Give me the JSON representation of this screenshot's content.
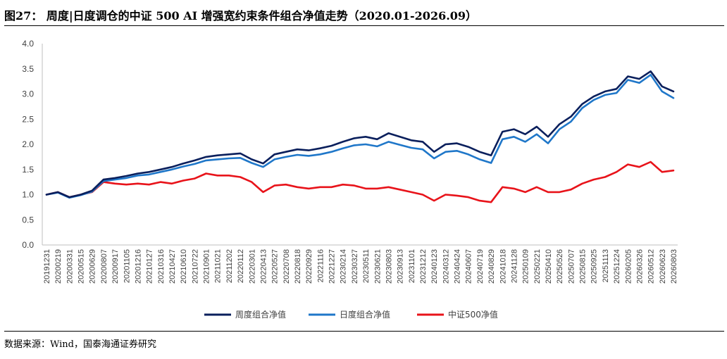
{
  "figure": {
    "title": "图27：  周度|日度调仓的中证 500 AI 增强宽约束条件组合净值走势（2020.01-2026.09）",
    "source": "数据来源：Wind，国泰海通证券研究"
  },
  "chart_data": {
    "type": "line",
    "title": "",
    "xlabel": "",
    "ylabel": "",
    "ylim": [
      0,
      4.0
    ],
    "yticks": [
      "0.0",
      "0.5",
      "1.0",
      "1.5",
      "2.0",
      "2.5",
      "3.0",
      "3.5",
      "4.0"
    ],
    "grid": false,
    "legend_position": "bottom",
    "x_tick_labels": [
      "20191231",
      "20200219",
      "20200331",
      "20200515",
      "20200629",
      "20200807",
      "20200917",
      "20201105",
      "20201216",
      "20210127",
      "20210316",
      "20210427",
      "20210610",
      "20210722",
      "20210901",
      "20211021",
      "20211202",
      "20220112",
      "20220301",
      "20220413",
      "20220527",
      "20220708",
      "20220818",
      "20220929",
      "20221116",
      "20221227",
      "20230214",
      "20230327",
      "20230511",
      "20230621",
      "20230803",
      "20230913",
      "20231101",
      "20231212",
      "20240123",
      "20240312",
      "20240424",
      "20240607",
      "20240719",
      "20240829",
      "20241018",
      "20241128",
      "20250109",
      "20250221",
      "20250410",
      "20250526",
      "20250707",
      "20250815",
      "20250925",
      "20251113",
      "20251224",
      "20260205",
      "20260326",
      "20260512",
      "20260623",
      "20260803"
    ],
    "series": [
      {
        "name": "周度组合净值",
        "color": "#0a1f5c",
        "values": [
          1.0,
          1.05,
          0.95,
          1.0,
          1.08,
          1.3,
          1.33,
          1.37,
          1.42,
          1.45,
          1.5,
          1.55,
          1.62,
          1.68,
          1.75,
          1.78,
          1.8,
          1.82,
          1.7,
          1.62,
          1.8,
          1.85,
          1.9,
          1.88,
          1.92,
          1.97,
          2.05,
          2.12,
          2.15,
          2.1,
          2.22,
          2.15,
          2.08,
          2.05,
          1.85,
          2.0,
          2.02,
          1.95,
          1.85,
          1.78,
          2.25,
          2.3,
          2.2,
          2.35,
          2.15,
          2.4,
          2.55,
          2.8,
          2.95,
          3.05,
          3.1,
          3.35,
          3.3,
          3.45,
          3.15,
          3.05
        ]
      },
      {
        "name": "日度组合净值",
        "color": "#1f77c9",
        "values": [
          1.0,
          1.04,
          0.94,
          0.99,
          1.06,
          1.27,
          1.3,
          1.33,
          1.38,
          1.4,
          1.45,
          1.5,
          1.56,
          1.61,
          1.68,
          1.7,
          1.72,
          1.73,
          1.63,
          1.55,
          1.7,
          1.75,
          1.79,
          1.77,
          1.8,
          1.85,
          1.92,
          1.98,
          2.0,
          1.96,
          2.05,
          1.99,
          1.93,
          1.9,
          1.72,
          1.85,
          1.87,
          1.8,
          1.7,
          1.63,
          2.1,
          2.15,
          2.05,
          2.2,
          2.02,
          2.3,
          2.45,
          2.72,
          2.88,
          2.98,
          3.02,
          3.28,
          3.22,
          3.38,
          3.05,
          2.92
        ]
      },
      {
        "name": "中证500净值",
        "color": "#e8131a",
        "values": [
          1.0,
          1.05,
          0.95,
          1.0,
          1.05,
          1.25,
          1.22,
          1.2,
          1.22,
          1.2,
          1.25,
          1.22,
          1.28,
          1.32,
          1.42,
          1.38,
          1.38,
          1.35,
          1.25,
          1.05,
          1.18,
          1.2,
          1.15,
          1.12,
          1.15,
          1.15,
          1.2,
          1.18,
          1.12,
          1.12,
          1.15,
          1.1,
          1.05,
          1.0,
          0.88,
          1.0,
          0.98,
          0.95,
          0.88,
          0.85,
          1.15,
          1.12,
          1.05,
          1.15,
          1.05,
          1.05,
          1.1,
          1.22,
          1.3,
          1.35,
          1.45,
          1.6,
          1.55,
          1.65,
          1.45,
          1.48
        ]
      }
    ]
  }
}
